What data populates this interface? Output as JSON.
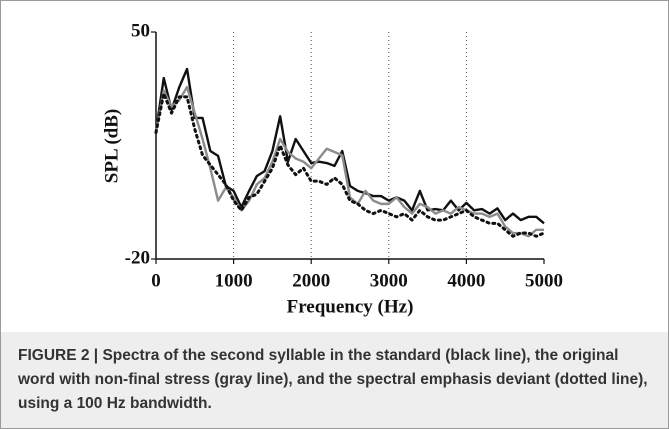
{
  "chart_data": {
    "type": "line",
    "x": [
      0,
      100,
      200,
      300,
      400,
      500,
      600,
      700,
      800,
      900,
      1000,
      1100,
      1200,
      1300,
      1400,
      1500,
      1600,
      1700,
      1800,
      1900,
      2000,
      2100,
      2200,
      2300,
      2400,
      2500,
      2600,
      2700,
      2800,
      2900,
      3000,
      3100,
      3200,
      3300,
      3400,
      3500,
      3600,
      3700,
      3800,
      3900,
      4000,
      4100,
      4200,
      4300,
      4400,
      4500,
      4600,
      4700,
      4800,
      4900,
      5000
    ],
    "series": [
      {
        "color": "#111111",
        "dash": "solid",
        "values": [
          19.5,
          35.8,
          26,
          33,
          38.6,
          23.5,
          23.5,
          13.3,
          11.8,
          2.5,
          1,
          -4,
          1,
          5.6,
          7.1,
          13.3,
          24,
          10,
          17,
          13.3,
          9.6,
          10,
          9.6,
          8.7,
          13.3,
          2.5,
          1,
          0.3,
          -0.6,
          -0.6,
          -2,
          -1,
          -2,
          -5,
          1,
          -5,
          -4.6,
          -5,
          -2,
          -5,
          -2.7,
          -5,
          -4.6,
          -6,
          -4.4,
          -8,
          -6,
          -8,
          -7,
          -7,
          -9
        ]
      },
      {
        "color": "#8c8c8c",
        "dash": "solid",
        "values": [
          19.5,
          32,
          27,
          29,
          33,
          25,
          17,
          8,
          -2,
          2,
          -1,
          -5,
          -2,
          3,
          5,
          10,
          17,
          13,
          11,
          10,
          8,
          11,
          14,
          13,
          12,
          -1,
          -3,
          1,
          -2,
          -3,
          -3,
          -1,
          -4,
          -6,
          -3,
          -4,
          -6,
          -5,
          -6,
          -4,
          -5,
          -6,
          -6,
          -7,
          -6,
          -10,
          -12,
          -12,
          -13,
          -11,
          -11
        ]
      },
      {
        "color": "#111111",
        "dash": "dotted",
        "values": [
          19,
          31,
          25,
          30,
          30,
          20,
          12,
          9,
          6,
          3,
          -2,
          -5,
          -1,
          0,
          4,
          8,
          15,
          9,
          6,
          8,
          4,
          4,
          3,
          5,
          3,
          -2,
          -3,
          -5,
          -6,
          -5,
          -6,
          -7,
          -6,
          -8,
          -5,
          -7,
          -8,
          -8,
          -7,
          -6,
          -5,
          -7,
          -8,
          -9,
          -9,
          -11,
          -13,
          -12,
          -12,
          -13,
          -12
        ]
      }
    ],
    "xlabel": "Frequency (Hz)",
    "ylabel": "SPL (dB)",
    "xlim": [
      0,
      5000
    ],
    "xticks": [
      0,
      1000,
      2000,
      3000,
      4000,
      5000
    ],
    "ylim": [
      -20,
      50
    ],
    "yticks": [
      -20,
      50
    ],
    "grid": "x"
  },
  "caption": {
    "label": "FIGURE 2 |",
    "text": "Spectra of the second syllable in the standard (black line), the original word with non-final stress (gray line), and the spectral emphasis deviant (dotted line), using a 100 Hz bandwidth."
  }
}
